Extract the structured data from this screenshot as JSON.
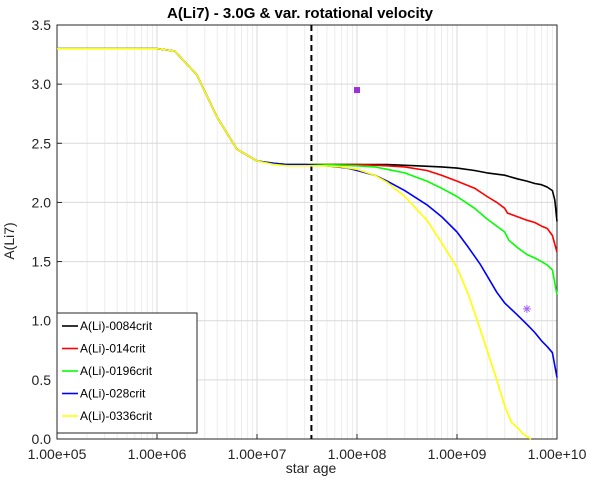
{
  "chart_data": {
    "type": "line",
    "title": "A(Li7) - 3.0G & var. rotational velocity",
    "xlabel": "star age",
    "ylabel": "A(Li7)",
    "xscale": "log",
    "xlim": [
      100000,
      10000000000
    ],
    "ylim": [
      0,
      3.5
    ],
    "xticks": [
      100000,
      1000000,
      10000000,
      100000000,
      1000000000,
      10000000000
    ],
    "xtick_labels": [
      "1.00e+05",
      "1.00e+06",
      "1.00e+07",
      "1.00e+08",
      "1.00e+09",
      "1.00e+10"
    ],
    "yticks": [
      0,
      0.5,
      1,
      1.5,
      2,
      2.5,
      3,
      3.5
    ],
    "ytick_labels": [
      "0.0",
      "0.5",
      "1.0",
      "1.5",
      "2.0",
      "2.5",
      "3.0",
      "3.5"
    ],
    "grid": true,
    "legend_position": "bottom-left",
    "series": [
      {
        "name": "A(Li)-0084crit",
        "color": "#000000",
        "x": [
          100000,
          1000000,
          1500000,
          2500000,
          4000000,
          6300000,
          10000000,
          15000000,
          20000000,
          30000000,
          50000000,
          100000000,
          200000000,
          400000000,
          700000000,
          1000000000,
          1500000000,
          2000000000,
          3000000000,
          4000000000,
          5000000000,
          6000000000,
          7000000000,
          8000000000,
          9000000000,
          9500000000,
          10000000000
        ],
        "y": [
          3.3,
          3.3,
          3.28,
          3.08,
          2.72,
          2.45,
          2.35,
          2.33,
          2.32,
          2.32,
          2.32,
          2.32,
          2.32,
          2.31,
          2.3,
          2.29,
          2.27,
          2.25,
          2.23,
          2.2,
          2.18,
          2.16,
          2.15,
          2.13,
          2.1,
          2.02,
          1.84
        ]
      },
      {
        "name": "A(Li)-014crit",
        "color": "#ff0000",
        "x": [
          100000,
          1000000,
          1500000,
          2500000,
          4000000,
          6300000,
          10000000,
          15000000,
          20000000,
          30000000,
          50000000,
          100000000,
          200000000,
          300000000,
          500000000,
          700000000,
          1000000000,
          1500000000,
          2000000000,
          2500000000,
          3000000000,
          3200000000,
          4000000000,
          5000000000,
          6000000000,
          7000000000,
          8000000000,
          9000000000,
          10000000000
        ],
        "y": [
          3.3,
          3.3,
          3.28,
          3.08,
          2.72,
          2.45,
          2.35,
          2.33,
          2.32,
          2.32,
          2.32,
          2.32,
          2.31,
          2.3,
          2.27,
          2.23,
          2.18,
          2.12,
          2.05,
          2.0,
          1.95,
          1.91,
          1.88,
          1.85,
          1.83,
          1.8,
          1.78,
          1.72,
          1.58
        ]
      },
      {
        "name": "A(Li)-0196crit",
        "color": "#00ff00",
        "x": [
          100000,
          1000000,
          1500000,
          2500000,
          4000000,
          6300000,
          10000000,
          15000000,
          20000000,
          30000000,
          50000000,
          100000000,
          150000000,
          200000000,
          300000000,
          500000000,
          700000000,
          1000000000,
          1500000000,
          2000000000,
          3000000000,
          3300000000,
          4000000000,
          5000000000,
          6000000000,
          7000000000,
          8000000000,
          9000000000,
          10000000000
        ],
        "y": [
          3.3,
          3.3,
          3.28,
          3.08,
          2.72,
          2.45,
          2.35,
          2.33,
          2.32,
          2.32,
          2.32,
          2.31,
          2.3,
          2.28,
          2.25,
          2.18,
          2.12,
          2.05,
          1.95,
          1.86,
          1.75,
          1.68,
          1.62,
          1.56,
          1.53,
          1.5,
          1.47,
          1.43,
          1.22
        ]
      },
      {
        "name": "A(Li)-028crit",
        "color": "#0000ff",
        "x": [
          100000,
          1000000,
          1500000,
          2500000,
          4000000,
          6300000,
          10000000,
          15000000,
          20000000,
          30000000,
          50000000,
          80000000,
          100000000,
          150000000,
          200000000,
          300000000,
          500000000,
          700000000,
          1000000000,
          1300000000,
          1700000000,
          2000000000,
          2500000000,
          3000000000,
          4000000000,
          5000000000,
          6000000000,
          7000000000,
          8000000000,
          9000000000,
          10000000000
        ],
        "y": [
          3.3,
          3.3,
          3.28,
          3.08,
          2.72,
          2.45,
          2.35,
          2.33,
          2.32,
          2.32,
          2.31,
          2.29,
          2.27,
          2.23,
          2.18,
          2.1,
          1.98,
          1.88,
          1.75,
          1.62,
          1.48,
          1.38,
          1.24,
          1.15,
          1.05,
          0.97,
          0.9,
          0.83,
          0.78,
          0.73,
          0.52
        ]
      },
      {
        "name": "A(Li)-0336crit",
        "color": "#ffff00",
        "x": [
          100000,
          1000000,
          1500000,
          2500000,
          4000000,
          6300000,
          10000000,
          15000000,
          20000000,
          30000000,
          50000000,
          70000000,
          100000000,
          150000000,
          200000000,
          300000000,
          500000000,
          700000000,
          1000000000,
          1300000000,
          1600000000,
          2000000000,
          2500000000,
          3000000000,
          3500000000,
          4000000000,
          4500000000,
          5000000000,
          5500000000
        ],
        "y": [
          3.3,
          3.3,
          3.28,
          3.08,
          2.72,
          2.45,
          2.35,
          2.32,
          2.31,
          2.31,
          2.31,
          2.3,
          2.28,
          2.23,
          2.17,
          2.05,
          1.85,
          1.66,
          1.45,
          1.22,
          1.0,
          0.75,
          0.5,
          0.28,
          0.14,
          0.1,
          0.05,
          0.02,
          0.0
        ]
      }
    ],
    "markers": [
      {
        "shape": "square",
        "color": "#9b30d9",
        "x": 100000000,
        "y": 2.95
      },
      {
        "shape": "asterisk",
        "color": "#a463f2",
        "x": 5000000000,
        "y": 1.1
      }
    ],
    "vline": {
      "x": 35000000,
      "style": "dashed",
      "color": "#000000"
    }
  }
}
